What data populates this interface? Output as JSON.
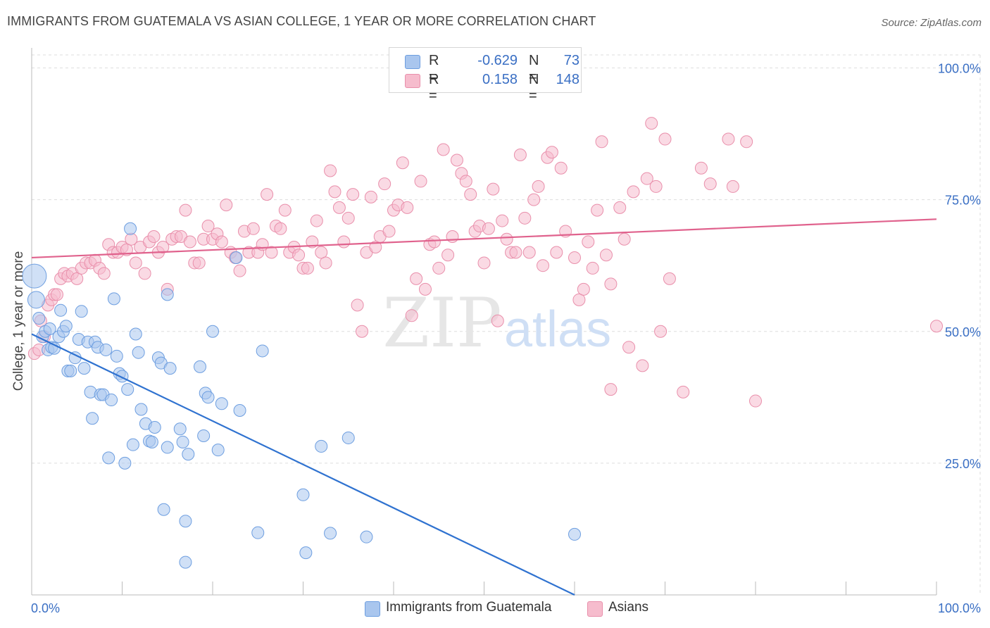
{
  "header": {
    "title": "IMMIGRANTS FROM GUATEMALA VS ASIAN COLLEGE, 1 YEAR OR MORE CORRELATION CHART",
    "source": "Source: ZipAtlas.com"
  },
  "watermark": {
    "zip": "ZIP",
    "atlas": "atlas"
  },
  "legend": {
    "rows": [
      {
        "r_label": "R =",
        "r_value": "-0.629",
        "n_label": "N =",
        "n_value": "73"
      },
      {
        "r_label": "R =",
        "r_value": "0.158",
        "n_label": "N =",
        "n_value": "148"
      }
    ]
  },
  "bottom_legend": {
    "series1": "Immigrants from Guatemala",
    "series2": "Asians"
  },
  "colors": {
    "blue_fill": "#a9c6ee",
    "blue_stroke": "#6d9ee0",
    "blue_line": "#2f72d0",
    "pink_fill": "#f6bccd",
    "pink_stroke": "#e98fab",
    "pink_line": "#e0628d",
    "tick_label": "#3a6fc4",
    "grid": "#dddddd"
  },
  "chart_data": {
    "type": "scatter",
    "title": "IMMIGRANTS FROM GUATEMALA VS ASIAN COLLEGE, 1 YEAR OR MORE CORRELATION CHART",
    "xlabel": "",
    "ylabel": "College, 1 year or more",
    "xlim": [
      0,
      100
    ],
    "ylim": [
      0,
      100
    ],
    "x_tick_labels": [
      "0.0%",
      "100.0%"
    ],
    "y_tick_labels": [
      "25.0%",
      "50.0%",
      "75.0%",
      "100.0%"
    ],
    "y_ticks": [
      25,
      50,
      75,
      100
    ],
    "grid": true,
    "legend_position": "top-center",
    "series": [
      {
        "name": "Immigrants from Guatemala",
        "color": "#a9c6ee",
        "trend": {
          "x": [
            0,
            60
          ],
          "y": [
            49.5,
            0.0
          ]
        },
        "points": [
          [
            0.3,
            60.5
          ],
          [
            0.5,
            56.0
          ],
          [
            0.8,
            52.5
          ],
          [
            1.2,
            49.0
          ],
          [
            1.5,
            50.0
          ],
          [
            1.8,
            46.5
          ],
          [
            2.0,
            50.5
          ],
          [
            2.2,
            47.0
          ],
          [
            2.5,
            46.8
          ],
          [
            3.0,
            49.0
          ],
          [
            3.2,
            54.0
          ],
          [
            3.5,
            50.0
          ],
          [
            3.8,
            51.0
          ],
          [
            4.0,
            42.5
          ],
          [
            4.3,
            42.5
          ],
          [
            4.8,
            45.0
          ],
          [
            5.2,
            48.5
          ],
          [
            5.5,
            53.8
          ],
          [
            5.8,
            43.0
          ],
          [
            6.2,
            48.0
          ],
          [
            6.5,
            38.5
          ],
          [
            6.7,
            33.5
          ],
          [
            7.0,
            48.0
          ],
          [
            7.3,
            47.0
          ],
          [
            7.6,
            38.0
          ],
          [
            7.9,
            38.0
          ],
          [
            8.2,
            46.5
          ],
          [
            8.5,
            26.0
          ],
          [
            8.8,
            37.0
          ],
          [
            9.1,
            56.2
          ],
          [
            9.4,
            45.3
          ],
          [
            9.7,
            42.0
          ],
          [
            10.0,
            41.5
          ],
          [
            10.3,
            25.0
          ],
          [
            10.6,
            39.0
          ],
          [
            10.9,
            69.5
          ],
          [
            11.2,
            28.5
          ],
          [
            11.5,
            49.5
          ],
          [
            11.8,
            46.0
          ],
          [
            12.1,
            35.2
          ],
          [
            12.6,
            32.5
          ],
          [
            13.0,
            29.2
          ],
          [
            13.3,
            29.0
          ],
          [
            13.6,
            31.8
          ],
          [
            14.0,
            45.0
          ],
          [
            14.3,
            44.0
          ],
          [
            14.6,
            16.2
          ],
          [
            15.0,
            28.0
          ],
          [
            15.3,
            43.0
          ],
          [
            15.0,
            57.0
          ],
          [
            16.4,
            31.5
          ],
          [
            16.7,
            29.0
          ],
          [
            17.0,
            14.0
          ],
          [
            17.3,
            26.7
          ],
          [
            18.6,
            43.3
          ],
          [
            19.2,
            38.3
          ],
          [
            19.0,
            30.2
          ],
          [
            19.5,
            37.5
          ],
          [
            20.0,
            50.0
          ],
          [
            20.6,
            27.5
          ],
          [
            21.0,
            36.3
          ],
          [
            17.0,
            6.2
          ],
          [
            22.6,
            64.0
          ],
          [
            23.0,
            35.0
          ],
          [
            25.0,
            11.8
          ],
          [
            25.5,
            46.3
          ],
          [
            30.0,
            19.0
          ],
          [
            30.3,
            8.0
          ],
          [
            32.0,
            28.2
          ],
          [
            33.0,
            11.7
          ],
          [
            35.0,
            29.8
          ],
          [
            37.0,
            11.0
          ],
          [
            60.0,
            11.5
          ]
        ]
      },
      {
        "name": "Asians",
        "color": "#f6bccd",
        "trend": {
          "x": [
            0,
            100
          ],
          "y": [
            64.0,
            71.3
          ]
        },
        "points": [
          [
            0.3,
            45.8
          ],
          [
            0.8,
            46.5
          ],
          [
            1.0,
            52.0
          ],
          [
            1.4,
            49.0
          ],
          [
            1.8,
            55.0
          ],
          [
            2.2,
            56.0
          ],
          [
            2.5,
            57.0
          ],
          [
            2.8,
            57.0
          ],
          [
            3.2,
            60.0
          ],
          [
            3.6,
            61.0
          ],
          [
            4.0,
            60.5
          ],
          [
            4.5,
            61.0
          ],
          [
            5.0,
            60.0
          ],
          [
            5.5,
            62.0
          ],
          [
            6.0,
            63.0
          ],
          [
            6.5,
            63.0
          ],
          [
            7.0,
            63.5
          ],
          [
            7.5,
            62.0
          ],
          [
            8.0,
            61.0
          ],
          [
            8.5,
            66.5
          ],
          [
            9.0,
            65.0
          ],
          [
            9.5,
            65.0
          ],
          [
            10.0,
            66.0
          ],
          [
            10.5,
            65.5
          ],
          [
            11.0,
            67.5
          ],
          [
            11.5,
            63.0
          ],
          [
            12.0,
            66.0
          ],
          [
            12.5,
            61.0
          ],
          [
            13.0,
            67.0
          ],
          [
            13.5,
            68.0
          ],
          [
            14.0,
            65.0
          ],
          [
            14.5,
            66.0
          ],
          [
            15.0,
            58.0
          ],
          [
            15.5,
            67.5
          ],
          [
            16.0,
            68.0
          ],
          [
            16.5,
            68.0
          ],
          [
            17.0,
            73.0
          ],
          [
            17.5,
            67.0
          ],
          [
            18.0,
            63.0
          ],
          [
            18.5,
            63.0
          ],
          [
            19.0,
            67.5
          ],
          [
            19.5,
            70.0
          ],
          [
            20.0,
            67.5
          ],
          [
            20.5,
            68.5
          ],
          [
            21.0,
            67.0
          ],
          [
            21.5,
            74.0
          ],
          [
            22.0,
            65.0
          ],
          [
            22.5,
            64.0
          ],
          [
            23.0,
            61.5
          ],
          [
            23.5,
            69.0
          ],
          [
            24.0,
            65.0
          ],
          [
            24.5,
            69.5
          ],
          [
            25.0,
            65.0
          ],
          [
            25.5,
            66.5
          ],
          [
            26.0,
            76.0
          ],
          [
            26.5,
            65.0
          ],
          [
            27.0,
            70.0
          ],
          [
            27.5,
            69.5
          ],
          [
            28.0,
            73.0
          ],
          [
            28.5,
            65.0
          ],
          [
            29.0,
            66.0
          ],
          [
            29.5,
            64.5
          ],
          [
            30.0,
            62.0
          ],
          [
            30.5,
            62.0
          ],
          [
            31.0,
            67.0
          ],
          [
            31.5,
            71.0
          ],
          [
            32.0,
            65.0
          ],
          [
            32.5,
            63.0
          ],
          [
            33.0,
            80.5
          ],
          [
            33.5,
            76.5
          ],
          [
            34.0,
            73.5
          ],
          [
            34.5,
            67.0
          ],
          [
            35.0,
            71.5
          ],
          [
            35.5,
            76.0
          ],
          [
            36.0,
            55.0
          ],
          [
            36.5,
            50.0
          ],
          [
            37.0,
            65.0
          ],
          [
            37.5,
            75.5
          ],
          [
            38.0,
            66.0
          ],
          [
            38.5,
            68.0
          ],
          [
            39.0,
            78.0
          ],
          [
            39.5,
            69.0
          ],
          [
            40.0,
            73.0
          ],
          [
            40.5,
            74.0
          ],
          [
            41.0,
            82.0
          ],
          [
            41.5,
            73.5
          ],
          [
            42.0,
            53.0
          ],
          [
            42.5,
            60.0
          ],
          [
            43.0,
            78.5
          ],
          [
            43.5,
            58.0
          ],
          [
            44.0,
            66.5
          ],
          [
            44.5,
            67.0
          ],
          [
            45.0,
            62.0
          ],
          [
            45.5,
            84.5
          ],
          [
            46.0,
            64.5
          ],
          [
            46.5,
            68.0
          ],
          [
            47.0,
            82.5
          ],
          [
            47.5,
            80.0
          ],
          [
            48.0,
            78.5
          ],
          [
            48.5,
            76.0
          ],
          [
            49.0,
            69.0
          ],
          [
            49.5,
            70.0
          ],
          [
            50.0,
            63.0
          ],
          [
            50.5,
            69.5
          ],
          [
            51.0,
            77.0
          ],
          [
            51.5,
            52.0
          ],
          [
            52.0,
            71.0
          ],
          [
            52.5,
            67.5
          ],
          [
            53.0,
            65.0
          ],
          [
            53.5,
            65.0
          ],
          [
            54.0,
            83.5
          ],
          [
            54.5,
            71.5
          ],
          [
            55.0,
            65.0
          ],
          [
            55.5,
            75.0
          ],
          [
            56.0,
            77.5
          ],
          [
            56.5,
            62.5
          ],
          [
            57.0,
            83.0
          ],
          [
            57.5,
            84.0
          ],
          [
            58.0,
            65.0
          ],
          [
            58.5,
            81.0
          ],
          [
            59.0,
            69.0
          ],
          [
            60.0,
            64.0
          ],
          [
            60.5,
            56.0
          ],
          [
            61.0,
            58.0
          ],
          [
            61.5,
            67.0
          ],
          [
            62.0,
            62.0
          ],
          [
            62.5,
            73.0
          ],
          [
            63.0,
            86.0
          ],
          [
            63.5,
            64.5
          ],
          [
            64.0,
            59.0
          ],
          [
            65.0,
            73.5
          ],
          [
            65.5,
            67.5
          ],
          [
            66.0,
            47.0
          ],
          [
            66.5,
            76.5
          ],
          [
            67.5,
            43.5
          ],
          [
            68.5,
            89.5
          ],
          [
            68.0,
            79.0
          ],
          [
            69.0,
            77.5
          ],
          [
            69.5,
            50.0
          ],
          [
            70.0,
            86.5
          ],
          [
            70.5,
            60.0
          ],
          [
            72.0,
            38.5
          ],
          [
            74.0,
            81.0
          ],
          [
            75.0,
            78.0
          ],
          [
            77.0,
            86.5
          ],
          [
            77.5,
            77.5
          ],
          [
            79.0,
            86.0
          ],
          [
            80.0,
            36.8
          ],
          [
            100.0,
            51.0
          ],
          [
            64.0,
            39.0
          ]
        ]
      }
    ]
  }
}
